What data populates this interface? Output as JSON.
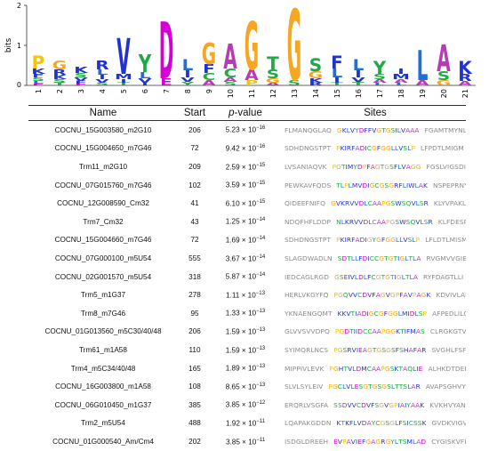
{
  "logo": {
    "ylabel": "bits",
    "yticks": [
      "0",
      "1",
      "2"
    ],
    "positions": [
      "1",
      "2",
      "3",
      "4",
      "5",
      "6",
      "7",
      "8",
      "9",
      "10",
      "11",
      "12",
      "13",
      "14",
      "15",
      "16",
      "17",
      "18",
      "19",
      "20",
      "21"
    ],
    "colors": {
      "P": "#f2c500",
      "K": "#2233cc",
      "R": "#2233cc",
      "L": "#1f6fd6",
      "V": "#2233cc",
      "Y": "#1faa44",
      "D": "#d400d4",
      "E": "#d400d4",
      "G": "#f5a623",
      "A": "#b63cb6",
      "F": "#2233cc",
      "S": "#1faa44",
      "C": "#1faa44",
      "T": "#1faa44",
      "I": "#2233cc",
      "M": "#2233cc",
      "N": "#1faa44",
      "Q": "#1faa44",
      "W": "#2233cc",
      "H": "#2233cc"
    }
  },
  "table": {
    "headers": {
      "name": "Name",
      "start": "Start",
      "pvalue_italic": "p",
      "pvalue_rest": "-value",
      "sites": "Sites"
    },
    "rows": [
      {
        "name": "COCNU_15G003580_m2G10",
        "start": "206",
        "p_mant": "5.23",
        "p_exp": "−16",
        "left": "FLMANQGLAQ",
        "site": "GKLVYDFFVGTGSILVAAA",
        "right": "FGAMTMYNLP"
      },
      {
        "name": "COCNU_15G004650_m7G46",
        "start": "72",
        "p_mant": "9.42",
        "p_exp": "−16",
        "left": "SDHDNGSTPT",
        "site": "PKIRFADICGFGGLLVSLP",
        "right": "LFPDTLMIGM"
      },
      {
        "name": "Trm11_m2G10",
        "start": "209",
        "p_mant": "2.59",
        "p_exp": "−15",
        "left": "LVSANIAQVK",
        "site": "PGTIMYDPFAGTGSFLVAGG",
        "right": "FGSLVIGSDI"
      },
      {
        "name": "COCNU_07G015760_m7G46",
        "start": "102",
        "p_mant": "3.59",
        "p_exp": "−15",
        "left": "PEWKAVFQDS",
        "site": "TLPLMVDIGCGSGRFLIWLAK",
        "right": "NSPEPRNYLG"
      },
      {
        "name": "COCNU_12G008590_Cm32",
        "start": "41",
        "p_mant": "6.10",
        "p_exp": "−15",
        "left": "QIDEEFNIFQ",
        "site": "GVKRVVDLCAAPGSWSQVLSR",
        "right": "KLYVPAKLSP"
      },
      {
        "name": "Trm7_Cm32",
        "start": "43",
        "p_mant": "1.25",
        "p_exp": "−14",
        "left": "NDQFHFLDDP",
        "site": "NLKRVVDLCAAPGSWSQVLSR",
        "right": "KLFDESPSSD"
      },
      {
        "name": "COCNU_15G004660_m7G46",
        "start": "72",
        "p_mant": "1.69",
        "p_exp": "−14",
        "left": "SDHDNGSTPT",
        "site": "PKIRFADIGYGFGGLLVSLP",
        "right": "LFLDTLMISM"
      },
      {
        "name": "COCNU_07G000100_m5U54",
        "start": "555",
        "p_mant": "3.67",
        "p_exp": "−14",
        "left": "SLAGDWADLN",
        "site": "SDTLLFDICCGTGTIGLTLA",
        "right": "RVGMVVGIEM"
      },
      {
        "name": "COCNU_02G001570_m5U54",
        "start": "318",
        "p_mant": "5.87",
        "p_exp": "−14",
        "left": "IEDCAGLRGD",
        "site": "GSEIVLDLFCGTGTIGLTLA",
        "right": "RYFDAGTLLI"
      },
      {
        "name": "Trm5_m1G37",
        "start": "278",
        "p_mant": "1.11",
        "p_exp": "−13",
        "left": "HERLVKGYFQ",
        "site": "PGQVVCDVFAGVGPFAVPAGK",
        "right": "KDVIVLANDL"
      },
      {
        "name": "Trm8_m7G46",
        "start": "95",
        "p_mant": "1.33",
        "p_exp": "−13",
        "left": "YKNAENGQMT",
        "site": "KKVTIADIGCGFGGLMIDLSP",
        "right": "AFPEDLILGM"
      },
      {
        "name": "COCNU_01G013560_m5C30/40/48",
        "start": "206",
        "p_mant": "1.59",
        "p_exp": "−13",
        "left": "GLVVSVVDPQ",
        "site": "PGDTIIDCCAAPGGKTIFMAS",
        "right": "CLRGKGTVMA"
      },
      {
        "name": "Trm61_m1A58",
        "start": "110",
        "p_mant": "1.59",
        "p_exp": "−13",
        "left": "SYIMQRLNCS",
        "site": "PGSRVIEAGTGSGSFSHAFAR",
        "right": "SVGHLFSFEF"
      },
      {
        "name": "Trm4_m5C34/40/48",
        "start": "165",
        "p_mant": "1.89",
        "p_exp": "−13",
        "left": "MIPPIVLEVK",
        "site": "PGHTVLDMCAAPGSKTAQLIE",
        "right": "ALHKDTDEPS"
      },
      {
        "name": "COCNU_16G003800_m1A58",
        "start": "108",
        "p_mant": "8.65",
        "p_exp": "−13",
        "left": "SLVLSYLEIV",
        "site": "PGCLVLESGTGSGSLTTSLAR",
        "right": "AVAPSGHVYT"
      },
      {
        "name": "COCNU_06G010450_m1G37",
        "start": "385",
        "p_mant": "3.85",
        "p_exp": "−12",
        "left": "ERQRLVSGFA",
        "site": "SSDVVCDVFSGVGPIAIYAAK",
        "right": "KVKHVYANDL"
      },
      {
        "name": "Trm2_m5U54",
        "start": "488",
        "p_mant": "1.92",
        "p_exp": "−11",
        "left": "LQAPAKGDDN",
        "site": "KTKFLVDAYCGSGLFSICSSK",
        "right": "GVDKVIGVEI"
      },
      {
        "name": "COCNU_01G000540_Am/Cm4",
        "start": "202",
        "p_mant": "3.85",
        "p_exp": "−11",
        "left": "ISDGLDREEH",
        "site": "EVPAVIEFGAGRGYLTSMLAD",
        "right": "CYGISKVFLV"
      }
    ]
  }
}
